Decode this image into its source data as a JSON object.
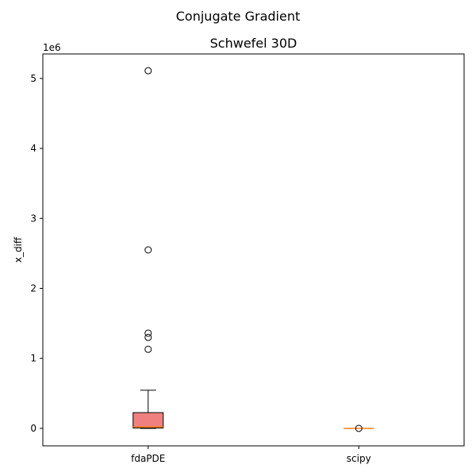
{
  "chart_data": {
    "type": "box",
    "suptitle": "Conjugate Gradient",
    "title": "Schwefel 30D",
    "ylabel": "x_diff",
    "xlabel": "",
    "y_offset_label": "1e6",
    "ylim": [
      -250000,
      5350000
    ],
    "yticks": [
      0,
      1000000,
      2000000,
      3000000,
      4000000,
      5000000
    ],
    "ytick_labels": [
      "0",
      "1",
      "2",
      "3",
      "4",
      "5"
    ],
    "categories": [
      "fdaPDE",
      "scipy"
    ],
    "boxes": [
      {
        "category": "fdaPDE",
        "color": "#f08080",
        "median_color": "#ff7f0e",
        "whisker_low": 0,
        "q1": 5000,
        "median": 20000,
        "q3": 225000,
        "whisker_high": 545000,
        "outliers": [
          1130000,
          1300000,
          1360000,
          2550000,
          5110000
        ]
      },
      {
        "category": "scipy",
        "color": "#f08080",
        "median_color": "#ff7f0e",
        "whisker_low": 0,
        "q1": 0,
        "median": 0,
        "q3": 0,
        "whisker_high": 0,
        "outliers": [
          0
        ]
      }
    ],
    "grid": false,
    "legend": "none"
  }
}
